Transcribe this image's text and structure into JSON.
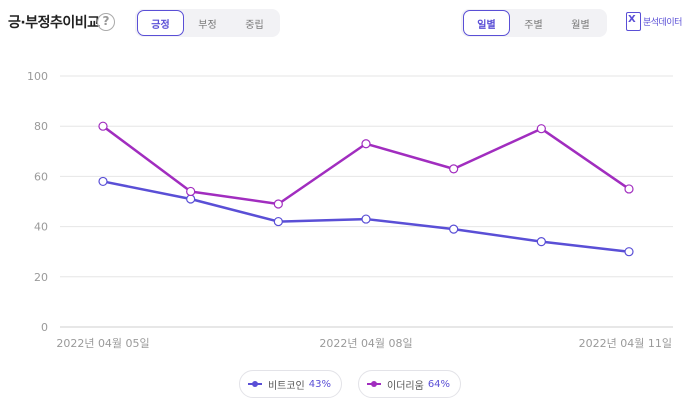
{
  "header": {
    "title": "긍·부정추이비교",
    "help_glyph": "?",
    "sentiment_tabs": [
      "긍정",
      "부정",
      "중립"
    ],
    "sentiment_active": 0,
    "period_tabs": [
      "일별",
      "주별",
      "월별"
    ],
    "period_active": 0,
    "download_label": "분석데이터"
  },
  "colors": {
    "accent": "#5a4fd6",
    "series1": "#5a4fd6",
    "series2": "#a12dbf",
    "grid": "#e6e6e6"
  },
  "chart_data": {
    "type": "line",
    "title": "",
    "xlabel": "",
    "ylabel": "",
    "ylim": [
      0,
      100
    ],
    "yticks": [
      0,
      20,
      40,
      60,
      80,
      100
    ],
    "x": [
      "2022년 04월 05일",
      "2022년 04월 06일",
      "2022년 04월 07일",
      "2022년 04월 08일",
      "2022년 04월 09일",
      "2022년 04월 10일",
      "2022년 04월 11일"
    ],
    "xtick_labels": [
      "2022년 04월 05일",
      "2022년 04월 08일",
      "2022년 04월 11일"
    ],
    "grid": true,
    "legend_position": "bottom",
    "series": [
      {
        "name": "비트코인",
        "pct_label": "43%",
        "values": [
          58,
          51,
          42,
          43,
          39,
          34,
          30
        ]
      },
      {
        "name": "이더리움",
        "pct_label": "64%",
        "values": [
          80,
          54,
          49,
          73,
          63,
          79,
          55
        ]
      }
    ]
  }
}
